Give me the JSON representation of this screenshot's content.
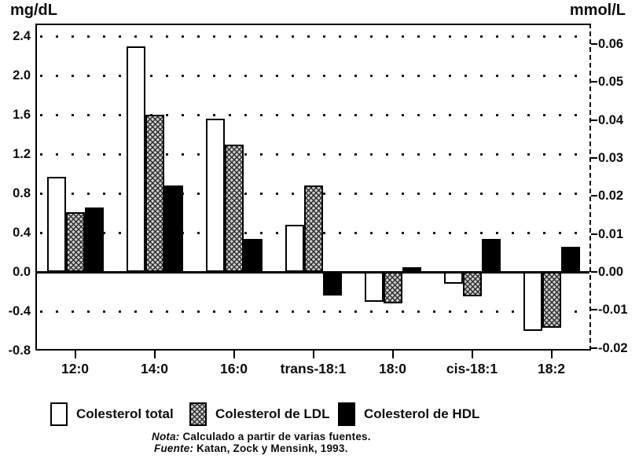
{
  "chart_data": {
    "type": "bar",
    "title": "",
    "categories": [
      "12:0",
      "14:0",
      "16:0",
      "trans-18:1",
      "18:0",
      "cis-18:1",
      "18:2"
    ],
    "series": [
      {
        "name": "Colesterol total",
        "style": "white",
        "values": [
          0.97,
          2.3,
          1.56,
          0.48,
          -0.3,
          -0.12,
          -0.6
        ]
      },
      {
        "name": "Colesterol de LDL",
        "style": "hatch",
        "values": [
          0.61,
          1.6,
          1.3,
          0.88,
          -0.32,
          -0.25,
          -0.57
        ]
      },
      {
        "name": "Colesterol de HDL",
        "style": "black",
        "values": [
          0.66,
          0.88,
          0.34,
          -0.24,
          0.05,
          0.34,
          0.26
        ]
      }
    ],
    "left_axis": {
      "label": "mg/dL",
      "ylim": [
        -0.8,
        2.53
      ],
      "ticks": [
        {
          "label": "2.4",
          "v": 2.4
        },
        {
          "label": "2.0",
          "v": 2.0
        },
        {
          "label": "1.6",
          "v": 1.6
        },
        {
          "label": "1.2",
          "v": 1.2
        },
        {
          "label": "0.8",
          "v": 0.8
        },
        {
          "label": "0.4",
          "v": 0.4
        },
        {
          "label": "0.0",
          "v": 0.0
        },
        {
          "label": "-0.4",
          "v": -0.4
        },
        {
          "label": "-0.8",
          "v": -0.8
        }
      ]
    },
    "right_axis": {
      "label": "mmol/L",
      "mg_per_mmol": 38.66,
      "ticks": [
        {
          "label": "0.06",
          "v": 0.06
        },
        {
          "label": "0.05",
          "v": 0.05
        },
        {
          "label": "0.04",
          "v": 0.04
        },
        {
          "label": "0.03",
          "v": 0.03
        },
        {
          "label": "0.02",
          "v": 0.02
        },
        {
          "label": "0.01",
          "v": 0.01
        },
        {
          "label": "0.00",
          "v": 0.0
        },
        {
          "label": "-0.01",
          "v": -0.01
        },
        {
          "label": "-0.02",
          "v": -0.02
        }
      ]
    },
    "gridlines": [
      2.4,
      2.0,
      1.6,
      1.2,
      0.8,
      0.4,
      -0.4
    ],
    "grid": "dotted",
    "legend_position": "bottom",
    "bar_colors": {
      "white": "#ffffff",
      "hatch": "#cdcdcd",
      "black": "#000000"
    }
  },
  "notes": {
    "nota_label": "Nota:",
    "nota_text": " Calculado a partir de varias fuentes.",
    "fuente_label": "Fuente:",
    "fuente_text": " Katan, Zock y Mensink, 1993."
  }
}
